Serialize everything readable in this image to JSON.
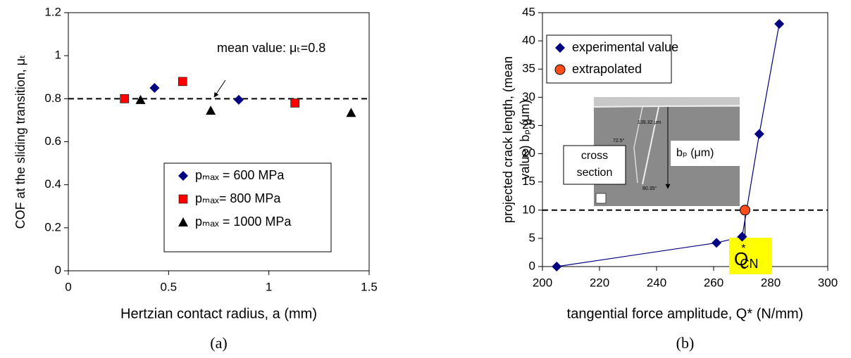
{
  "chart_data": [
    {
      "type": "scatter",
      "x_label": "Hertzian contact radius, a (mm)",
      "y_label": "COF at the sliding transition, μₜ",
      "caption": "(a)",
      "xlim": [
        0,
        1.5
      ],
      "xticks": [
        0,
        0.5,
        1,
        1.5
      ],
      "ylim": [
        0,
        1.2
      ],
      "yticks": [
        0,
        0.2,
        0.4,
        0.6,
        0.8,
        1,
        1.2
      ],
      "hline": 0.8,
      "annotation": "mean value: μₜ=0.8",
      "legend": "bottom-center",
      "series": [
        {
          "name": "pₘₐₓ = 600 MPa",
          "color": "#000080",
          "marker": "diamond",
          "x": [
            0.43,
            0.85
          ],
          "values": [
            0.85,
            0.795
          ]
        },
        {
          "name": "pₘₐₓ= 800 MPa",
          "color": "#ff0000",
          "marker": "square",
          "x": [
            0.28,
            0.57,
            1.13
          ],
          "values": [
            0.8,
            0.88,
            0.78
          ]
        },
        {
          "name": "pₘₐₓ = 1000 MPa",
          "color": "#000000",
          "marker": "triangle",
          "x": [
            0.36,
            0.71,
            1.41
          ],
          "values": [
            0.795,
            0.745,
            0.735
          ]
        }
      ]
    },
    {
      "type": "line",
      "x_label": "tangential force amplitude, Q* (N/mm)",
      "y_label": [
        "projected crack length, (mean",
        "value) bₚ (μm)"
      ],
      "caption": "(b)",
      "xlim": [
        200,
        300
      ],
      "xticks": [
        200,
        220,
        240,
        260,
        280,
        300
      ],
      "ylim": [
        0,
        45
      ],
      "yticks": [
        0,
        5,
        10,
        15,
        20,
        25,
        30,
        35,
        40,
        45
      ],
      "hline": 10,
      "legend": "upper-left",
      "annotation": {
        "base": "Q",
        "sup": "*",
        "sub": "CN"
      },
      "inset_labels": {
        "section": [
          "cross",
          "section"
        ],
        "depth": "bₚ (μm)",
        "micro": [
          "139.32 μm",
          "72.5°",
          "80.35°"
        ]
      },
      "series": [
        {
          "name": "experimental value",
          "color": "#000080",
          "marker": "diamond",
          "line": true,
          "x": [
            205,
            261,
            270,
            276,
            283
          ],
          "values": [
            0,
            4.2,
            5.3,
            23.5,
            43
          ]
        },
        {
          "name": "extrapolated",
          "color": "#ff4d1a",
          "marker": "circle",
          "x": [
            271
          ],
          "values": [
            10
          ]
        }
      ]
    }
  ]
}
